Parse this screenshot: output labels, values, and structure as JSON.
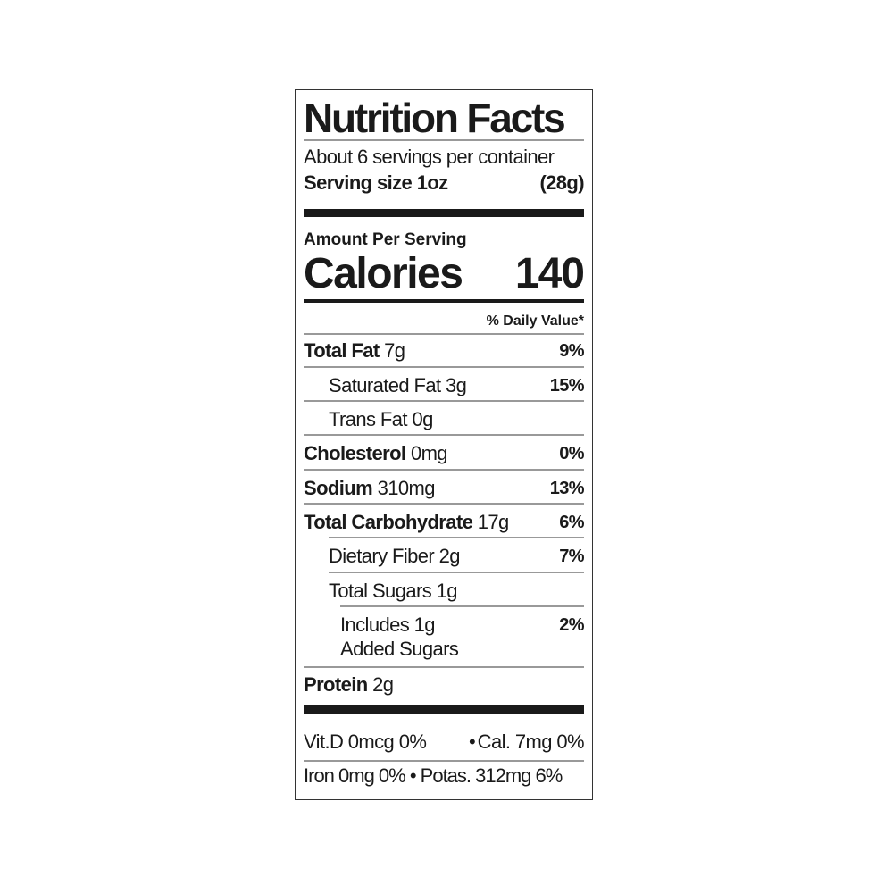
{
  "title": "Nutrition Facts",
  "servings_per_container": "About 6 servings per container",
  "serving_size_label": "Serving size 1oz",
  "serving_size_grams": "(28g)",
  "amount_per_serving": "Amount Per Serving",
  "calories_label": "Calories",
  "calories_value": "140",
  "daily_value_header": "% Daily Value*",
  "nutrients": [
    {
      "name": "Total Fat",
      "amount": "7g",
      "dv": "9%"
    },
    {
      "name": "Saturated Fat",
      "amount": "3g",
      "dv": "15%"
    },
    {
      "name": "Trans Fat",
      "amount": "0g",
      "dv": ""
    },
    {
      "name": "Cholesterol",
      "amount": "0mg",
      "dv": "0%"
    },
    {
      "name": "Sodium",
      "amount": "310mg",
      "dv": "13%"
    },
    {
      "name": "Total Carbohydrate",
      "amount": "17g",
      "dv": "6%"
    },
    {
      "name": "Dietary Fiber",
      "amount": "2g",
      "dv": "7%"
    },
    {
      "name": "Total Sugars",
      "amount": "1g",
      "dv": ""
    },
    {
      "name": "Includes 1g",
      "amount": "Added Sugars",
      "dv": "2%"
    },
    {
      "name": "Protein",
      "amount": "2g",
      "dv": ""
    }
  ],
  "micros": {
    "line1_left": "Vit.D 0mcg 0%",
    "line1_sep": "•",
    "line1_right": "Cal. 7mg 0%",
    "line2": "Iron 0mg 0% • Potas. 312mg 6%"
  }
}
